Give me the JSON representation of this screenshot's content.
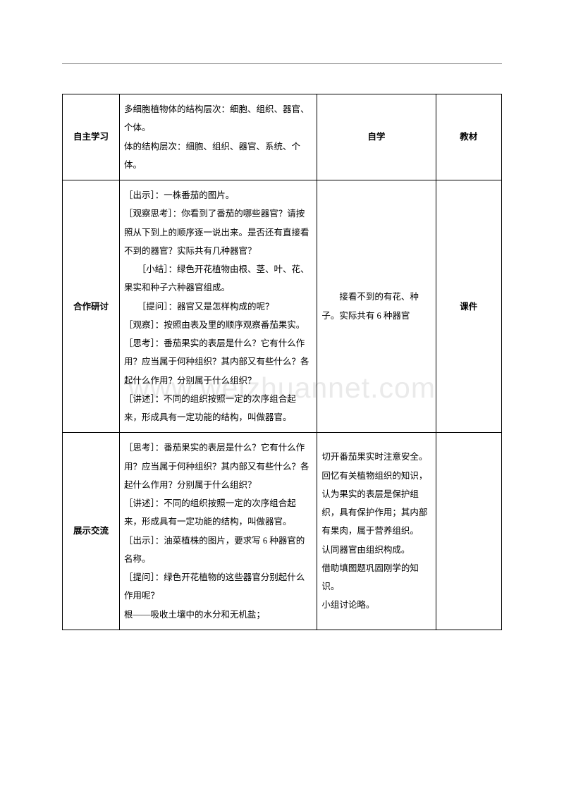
{
  "watermark": "www.weizhuannet.com",
  "rows": [
    {
      "label": "自主学习",
      "main": "多细胞植物体的结构层次：细胞、组织、器官、个体。\n体的结构层次：细胞、组织、器官、系统、个体。",
      "notes": "自学",
      "aside": "教材"
    },
    {
      "label": "合作研讨",
      "main": "［出示］：一株番茄的图片。\n［观察思考］：你看到了番茄的哪些器官？请按照从下到上的顺序逐一说出来。是否还有直接看不到的器官？实际共有几种器官？\n　　［小结］：绿色开花植物由根、茎、叶、花、果实和种子六种器官组成。\n　　［提问］：器官又是怎样构成的呢？\n［观察］：按照由表及里的顺序观察番茄果实。\n［思考］：番茄果实的表层是什么？它有什么作用？应当属于何种组织？其内部又有些什么？各起什么作用？分别属于什么组织？\n［讲述］：不同的组织按照一定的次序组合起来，形成具有一定功能的结构，叫做器官。",
      "notes": "　　接看不到的有花、种子。实际共有 6 种器官",
      "aside": "课件"
    },
    {
      "label": "展示交流",
      "main": "［思考］：番茄果实的表层是什么？它有什么作用？应当属于何种组织？其内部又有些什么？各起什么作用？分别属于什么组织？\n［讲述］：不同的组织按照一定的次序组合起来，形成具有一定功能的结构，叫做器官。\n［出示］：油菜植株的图片，要求写 6 种器官的名称。\n［提问］：绿色开花植物的这些器官分别起什么作用呢？\n根——吸收土壤中的水分和无机盐；",
      "notes": "切开番茄果实时注意安全。\n回忆有关植物组织的知识，认为果实的表层是保护组织，具有保护作用；其内部有果肉，属于营养组织。\n认同器官由组织构成。\n借助填图题巩固刚学的知识。\n小组讨论略。",
      "aside": ""
    }
  ]
}
